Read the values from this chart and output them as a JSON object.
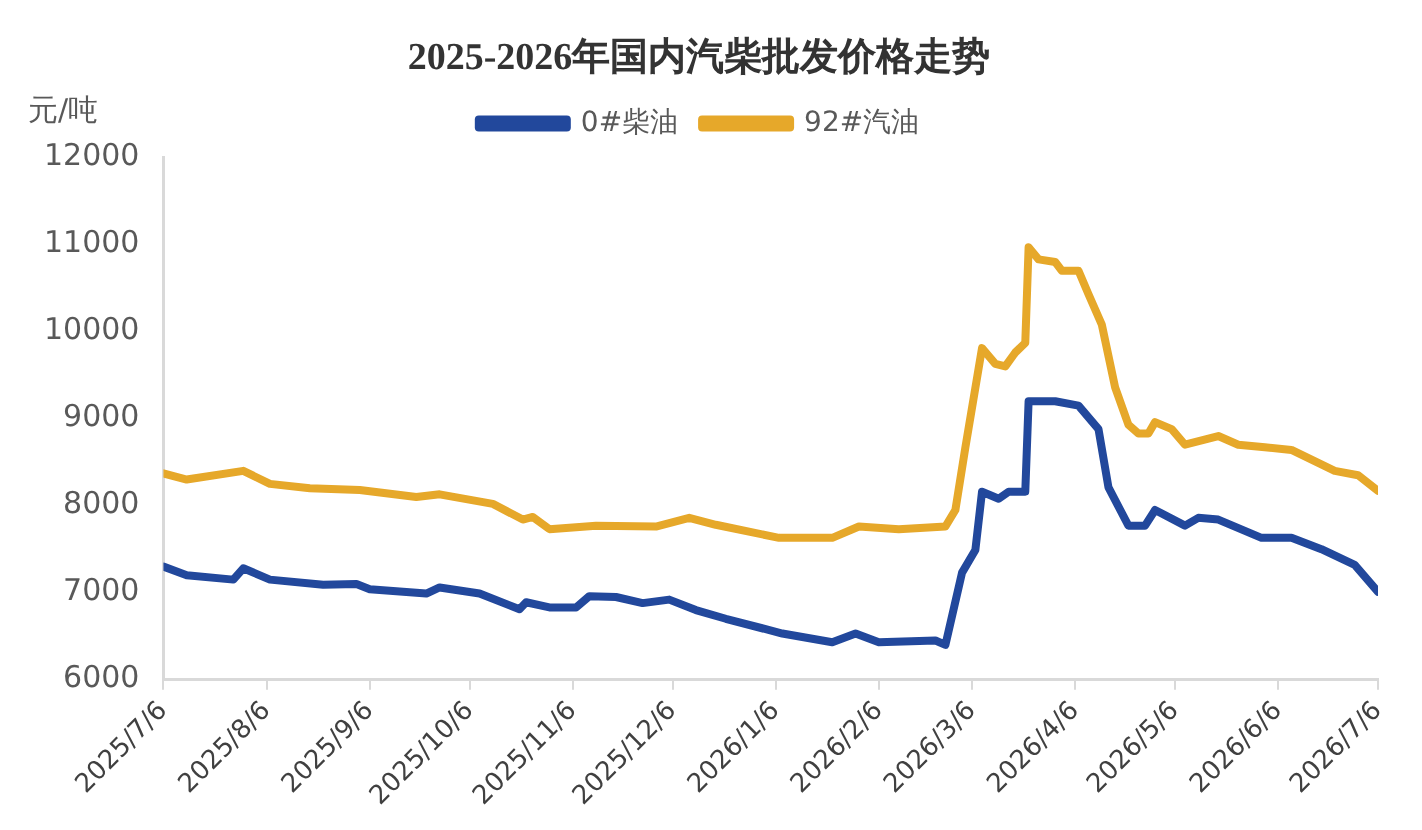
{
  "chart_data": {
    "type": "line",
    "title": "2025-2026年国内汽柴批发价格走势",
    "ylabel": "元/吨",
    "xlim": [
      "2025-07-06",
      "2026-07-06"
    ],
    "xticks": [
      {
        "value": "2025-07-06",
        "label": "2025/7/6"
      },
      {
        "value": "2025-08-06",
        "label": "2025/8/6"
      },
      {
        "value": "2025-09-06",
        "label": "2025/9/6"
      },
      {
        "value": "2025-10-06",
        "label": "2025/10/6"
      },
      {
        "value": "2025-11-06",
        "label": "2025/11/6"
      },
      {
        "value": "2025-12-06",
        "label": "2025/12/6"
      },
      {
        "value": "2026-01-06",
        "label": "2026/1/6"
      },
      {
        "value": "2026-02-06",
        "label": "2026/2/6"
      },
      {
        "value": "2026-03-06",
        "label": "2026/3/6"
      },
      {
        "value": "2026-04-06",
        "label": "2026/4/6"
      },
      {
        "value": "2026-05-06",
        "label": "2026/5/6"
      },
      {
        "value": "2026-06-06",
        "label": "2026/6/6"
      },
      {
        "value": "2026-07-06",
        "label": "2026/7/6"
      }
    ],
    "ylim": [
      6000,
      12000
    ],
    "yticks": [
      6000,
      7000,
      8000,
      9000,
      10000,
      11000,
      12000
    ],
    "grid": false,
    "legend": "top",
    "marker": "none",
    "line_style": "solid",
    "series": [
      {
        "name": "0#柴油",
        "color": "#22489c",
        "x": [
          "2025-07-06",
          "2025-07-13",
          "2025-07-27",
          "2025-07-30",
          "2025-08-07",
          "2025-08-23",
          "2025-09-02",
          "2025-09-06",
          "2025-09-23",
          "2025-09-27",
          "2025-10-09",
          "2025-10-21",
          "2025-10-23",
          "2025-10-30",
          "2025-11-07",
          "2025-11-11",
          "2025-11-19",
          "2025-11-27",
          "2025-12-05",
          "2025-12-13",
          "2025-12-22",
          "2026-01-08",
          "2026-01-23",
          "2026-01-30",
          "2026-02-06",
          "2026-02-23",
          "2026-02-26",
          "2026-03-03",
          "2026-03-07",
          "2026-03-09",
          "2026-03-14",
          "2026-03-17",
          "2026-03-22",
          "2026-03-23",
          "2026-03-31",
          "2026-04-07",
          "2026-04-13",
          "2026-04-16",
          "2026-04-22",
          "2026-04-27",
          "2026-04-30",
          "2026-05-09",
          "2026-05-13",
          "2026-05-19",
          "2026-06-01",
          "2026-06-10",
          "2026-06-19",
          "2026-06-29",
          "2026-07-06"
        ],
        "values": [
          7300,
          7200,
          7150,
          7280,
          7150,
          7090,
          7100,
          7040,
          6990,
          7060,
          6990,
          6810,
          6890,
          6830,
          6830,
          6960,
          6950,
          6880,
          6920,
          6800,
          6700,
          6530,
          6430,
          6530,
          6430,
          6450,
          6400,
          7230,
          7490,
          8160,
          8080,
          8160,
          8160,
          9200,
          9200,
          9150,
          8880,
          8210,
          7770,
          7770,
          7950,
          7770,
          7860,
          7840,
          7630,
          7630,
          7500,
          7320,
          7010
        ]
      },
      {
        "name": "92#汽油",
        "color": "#e6a82a",
        "x": [
          "2025-07-06",
          "2025-07-13",
          "2025-07-30",
          "2025-08-07",
          "2025-08-19",
          "2025-09-03",
          "2025-09-20",
          "2025-09-27",
          "2025-10-13",
          "2025-10-22",
          "2025-10-25",
          "2025-10-30",
          "2025-11-13",
          "2025-12-01",
          "2025-12-11",
          "2025-12-19",
          "2026-01-07",
          "2026-01-23",
          "2026-01-31",
          "2026-02-12",
          "2026-02-26",
          "2026-03-01",
          "2026-03-04",
          "2026-03-09",
          "2026-03-13",
          "2026-03-16",
          "2026-03-19",
          "2026-03-22",
          "2026-03-23",
          "2026-03-26",
          "2026-03-31",
          "2026-04-02",
          "2026-04-07",
          "2026-04-10",
          "2026-04-14",
          "2026-04-18",
          "2026-04-22",
          "2026-04-25",
          "2026-04-28",
          "2026-04-30",
          "2026-05-05",
          "2026-05-09",
          "2026-05-19",
          "2026-05-25",
          "2026-06-02",
          "2026-06-10",
          "2026-06-23",
          "2026-06-30",
          "2026-07-06"
        ],
        "values": [
          8370,
          8300,
          8400,
          8250,
          8200,
          8180,
          8100,
          8130,
          8020,
          7840,
          7870,
          7730,
          7770,
          7760,
          7860,
          7780,
          7630,
          7630,
          7760,
          7730,
          7760,
          7950,
          8670,
          9810,
          9630,
          9600,
          9760,
          9870,
          10970,
          10830,
          10800,
          10700,
          10700,
          10430,
          10080,
          9360,
          8930,
          8830,
          8830,
          8960,
          8880,
          8700,
          8800,
          8700,
          8670,
          8640,
          8400,
          8350,
          8170
        ]
      }
    ]
  }
}
